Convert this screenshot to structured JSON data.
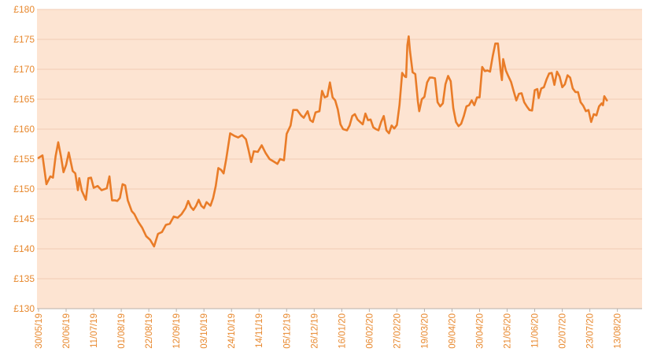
{
  "chart_data": {
    "type": "line",
    "title": "",
    "xlabel": "",
    "ylabel": "",
    "y_tick_labels": [
      "£130",
      "£135",
      "£140",
      "£145",
      "£150",
      "£155",
      "£160",
      "£165",
      "£170",
      "£175",
      "£180"
    ],
    "ylim": [
      130,
      180
    ],
    "x_tick_labels": [
      "30/05/19",
      "20/06/19",
      "11/07/19",
      "01/08/19",
      "22/08/19",
      "12/09/19",
      "03/10/19",
      "24/10/19",
      "14/11/19",
      "05/12/19",
      "26/12/19",
      "16/01/20",
      "06/02/20",
      "27/02/20",
      "19/03/20",
      "09/04/20",
      "30/04/20",
      "21/05/20",
      "11/06/20",
      "02/07/20",
      "23/07/20",
      "13/08/20"
    ],
    "x_range_days": [
      0,
      455
    ],
    "grid": true,
    "legend": "none",
    "series": [
      {
        "points": [
          [
            0,
            155.2
          ],
          [
            3,
            155.6
          ],
          [
            6,
            150.8
          ],
          [
            9,
            152.1
          ],
          [
            11,
            151.9
          ],
          [
            13,
            155.5
          ],
          [
            15,
            157.8
          ],
          [
            17,
            155.5
          ],
          [
            19,
            152.8
          ],
          [
            21,
            154.0
          ],
          [
            23,
            156.1
          ],
          [
            26,
            153.0
          ],
          [
            28,
            152.6
          ],
          [
            30,
            149.8
          ],
          [
            31,
            151.8
          ],
          [
            33,
            149.7
          ],
          [
            36,
            148.2
          ],
          [
            38,
            151.8
          ],
          [
            40,
            151.9
          ],
          [
            42,
            150.2
          ],
          [
            45,
            150.5
          ],
          [
            48,
            149.8
          ],
          [
            52,
            150.1
          ],
          [
            54,
            152.1
          ],
          [
            56,
            148.1
          ],
          [
            58,
            148.1
          ],
          [
            60,
            148.0
          ],
          [
            62,
            148.5
          ],
          [
            64,
            150.8
          ],
          [
            66,
            150.6
          ],
          [
            68,
            148.1
          ],
          [
            71,
            146.3
          ],
          [
            73,
            145.8
          ],
          [
            76,
            144.5
          ],
          [
            79,
            143.5
          ],
          [
            82,
            142.1
          ],
          [
            85,
            141.5
          ],
          [
            88,
            140.4
          ],
          [
            91,
            142.5
          ],
          [
            94,
            142.8
          ],
          [
            97,
            144.0
          ],
          [
            100,
            144.2
          ],
          [
            103,
            145.4
          ],
          [
            106,
            145.2
          ],
          [
            109,
            145.8
          ],
          [
            112,
            146.8
          ],
          [
            114,
            148.0
          ],
          [
            116,
            147.0
          ],
          [
            118,
            146.5
          ],
          [
            120,
            147.2
          ],
          [
            122,
            148.2
          ],
          [
            124,
            147.2
          ],
          [
            126,
            146.8
          ],
          [
            128,
            147.8
          ],
          [
            131,
            147.2
          ],
          [
            133,
            148.5
          ],
          [
            135,
            150.5
          ],
          [
            137,
            153.5
          ],
          [
            139,
            153.2
          ],
          [
            141,
            152.6
          ],
          [
            143,
            155.0
          ],
          [
            146,
            159.3
          ],
          [
            149,
            158.9
          ],
          [
            152,
            158.6
          ],
          [
            155,
            159.0
          ],
          [
            158,
            158.3
          ],
          [
            160,
            156.5
          ],
          [
            162,
            154.5
          ],
          [
            164,
            156.3
          ],
          [
            167,
            156.2
          ],
          [
            170,
            157.3
          ],
          [
            173,
            156.0
          ],
          [
            176,
            155.0
          ],
          [
            179,
            154.6
          ],
          [
            182,
            154.2
          ],
          [
            184,
            155.0
          ],
          [
            187,
            154.8
          ],
          [
            189,
            159.2
          ],
          [
            192,
            160.6
          ],
          [
            194,
            163.2
          ],
          [
            197,
            163.2
          ],
          [
            200,
            162.3
          ],
          [
            202,
            161.9
          ],
          [
            205,
            163.0
          ],
          [
            207,
            161.5
          ],
          [
            209,
            161.2
          ],
          [
            211,
            162.8
          ],
          [
            214,
            163.0
          ],
          [
            216,
            166.4
          ],
          [
            218,
            165.3
          ],
          [
            220,
            165.5
          ],
          [
            222,
            167.8
          ],
          [
            224,
            165.3
          ],
          [
            226,
            164.8
          ],
          [
            228,
            163.3
          ],
          [
            230,
            160.8
          ],
          [
            232,
            160.0
          ],
          [
            235,
            159.8
          ],
          [
            237,
            160.6
          ],
          [
            239,
            162.2
          ],
          [
            241,
            162.5
          ],
          [
            243,
            161.6
          ],
          [
            245,
            161.2
          ],
          [
            247,
            160.8
          ],
          [
            249,
            162.6
          ],
          [
            251,
            161.5
          ],
          [
            253,
            161.6
          ],
          [
            255,
            160.3
          ],
          [
            257,
            160.0
          ],
          [
            259,
            159.8
          ],
          [
            261,
            161.2
          ],
          [
            263,
            162.2
          ],
          [
            265,
            159.8
          ],
          [
            267,
            159.3
          ],
          [
            269,
            160.6
          ],
          [
            271,
            160.1
          ],
          [
            273,
            160.7
          ],
          [
            275,
            164.0
          ],
          [
            277,
            169.4
          ],
          [
            279,
            168.8
          ],
          [
            280,
            168.7
          ],
          [
            281,
            174.0
          ],
          [
            282,
            175.5
          ],
          [
            283,
            173.0
          ],
          [
            285,
            169.5
          ],
          [
            287,
            169.2
          ],
          [
            289,
            164.6
          ],
          [
            290,
            163.0
          ],
          [
            292,
            165.0
          ],
          [
            294,
            165.4
          ],
          [
            296,
            167.8
          ],
          [
            298,
            168.6
          ],
          [
            300,
            168.6
          ],
          [
            302,
            168.5
          ],
          [
            304,
            164.5
          ],
          [
            306,
            163.8
          ],
          [
            308,
            164.3
          ],
          [
            310,
            167.5
          ],
          [
            312,
            168.9
          ],
          [
            314,
            168.0
          ],
          [
            316,
            163.5
          ],
          [
            318,
            161.2
          ],
          [
            320,
            160.5
          ],
          [
            322,
            160.9
          ],
          [
            324,
            162.2
          ],
          [
            326,
            163.8
          ],
          [
            328,
            164.0
          ],
          [
            330,
            164.8
          ],
          [
            332,
            164.0
          ],
          [
            334,
            165.3
          ],
          [
            336,
            165.3
          ],
          [
            338,
            170.4
          ],
          [
            340,
            169.7
          ],
          [
            342,
            169.8
          ],
          [
            344,
            169.6
          ],
          [
            346,
            172.2
          ],
          [
            348,
            174.3
          ],
          [
            350,
            174.3
          ],
          [
            352,
            169.8
          ],
          [
            353,
            168.2
          ],
          [
            354,
            171.7
          ],
          [
            356,
            169.8
          ],
          [
            358,
            168.8
          ],
          [
            360,
            167.9
          ],
          [
            362,
            166.3
          ],
          [
            364,
            164.8
          ],
          [
            366,
            165.9
          ],
          [
            368,
            166.0
          ],
          [
            370,
            164.5
          ],
          [
            372,
            163.8
          ],
          [
            374,
            163.2
          ],
          [
            376,
            163.1
          ],
          [
            378,
            166.5
          ],
          [
            380,
            166.7
          ],
          [
            381,
            165.2
          ],
          [
            383,
            166.8
          ],
          [
            385,
            167.0
          ],
          [
            387,
            168.3
          ],
          [
            389,
            169.3
          ],
          [
            391,
            169.4
          ],
          [
            393,
            167.4
          ],
          [
            395,
            169.6
          ],
          [
            397,
            168.8
          ],
          [
            399,
            167.0
          ],
          [
            401,
            167.5
          ],
          [
            403,
            169.0
          ],
          [
            405,
            168.6
          ],
          [
            407,
            166.8
          ],
          [
            409,
            166.2
          ],
          [
            411,
            166.2
          ],
          [
            413,
            164.5
          ],
          [
            415,
            163.9
          ],
          [
            417,
            163.0
          ],
          [
            419,
            163.2
          ],
          [
            421,
            161.2
          ],
          [
            423,
            162.5
          ],
          [
            425,
            162.3
          ],
          [
            427,
            163.8
          ],
          [
            429,
            164.3
          ],
          [
            430,
            164.0
          ],
          [
            431,
            165.5
          ],
          [
            433,
            164.8
          ]
        ]
      }
    ]
  },
  "colors": {
    "plot_background": "#fde4d2",
    "line": "#e97c28",
    "tick_text": "#e8892f",
    "grid": "#f1cdb4",
    "axis": "#b9b0aa"
  }
}
